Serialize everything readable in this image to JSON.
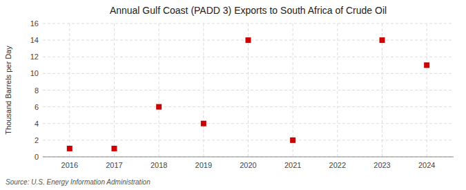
{
  "chart_data": {
    "type": "scatter",
    "title": "Annual Gulf Coast (PADD 3) Exports to South Africa of Crude Oil",
    "ylabel": "Thousand Barrels per Day",
    "annotations": [
      "Source: U.S. Energy Information Administration"
    ],
    "x": [
      2016,
      2017,
      2018,
      2019,
      2020,
      2021,
      2023,
      2024
    ],
    "values": [
      1,
      1,
      6,
      4,
      14,
      2,
      14,
      11
    ],
    "color": "#cc0000",
    "marker": "square",
    "xlim": [
      2015.4,
      2024.6
    ],
    "xticks": [
      2016,
      2017,
      2018,
      2019,
      2020,
      2021,
      2022,
      2023,
      2024
    ],
    "ylim": [
      0,
      16
    ],
    "yticks": [
      0,
      2,
      4,
      6,
      8,
      10,
      12,
      14,
      16
    ],
    "grid": true
  }
}
